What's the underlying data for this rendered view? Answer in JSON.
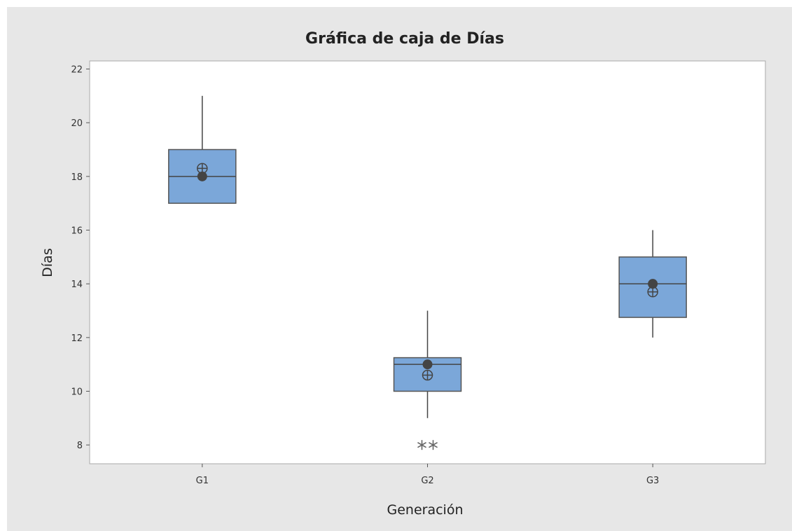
{
  "chart_data": {
    "type": "boxplot",
    "title": "Gráfica de caja de Días",
    "xlabel": "Generación",
    "ylabel": "Días",
    "ylim": [
      7.3,
      22.3
    ],
    "yticks": [
      8,
      10,
      12,
      14,
      16,
      18,
      20,
      22
    ],
    "grid": false,
    "categories": [
      "G1",
      "G2",
      "G3"
    ],
    "boxes": [
      {
        "category": "G1",
        "whisker_low": 17,
        "q1": 17,
        "median": 18,
        "q3": 19,
        "whisker_high": 21,
        "mean": 18.3,
        "outliers": []
      },
      {
        "category": "G2",
        "whisker_low": 9,
        "q1": 10,
        "median": 11,
        "q3": 11.25,
        "whisker_high": 13,
        "mean": 10.6,
        "outliers": [
          8,
          8
        ]
      },
      {
        "category": "G3",
        "whisker_low": 12,
        "q1": 12.75,
        "median": 14,
        "q3": 15,
        "whisker_high": 16,
        "mean": 13.7,
        "outliers": []
      }
    ],
    "colors": {
      "box_fill": "#7ba7d9",
      "box_stroke": "#555555",
      "line": "#444444",
      "marker": "#444444",
      "outlier": "#666666",
      "plot_bg": "#ffffff",
      "frame_bg": "#e7e7e7",
      "axis": "#aaaaaa"
    }
  }
}
